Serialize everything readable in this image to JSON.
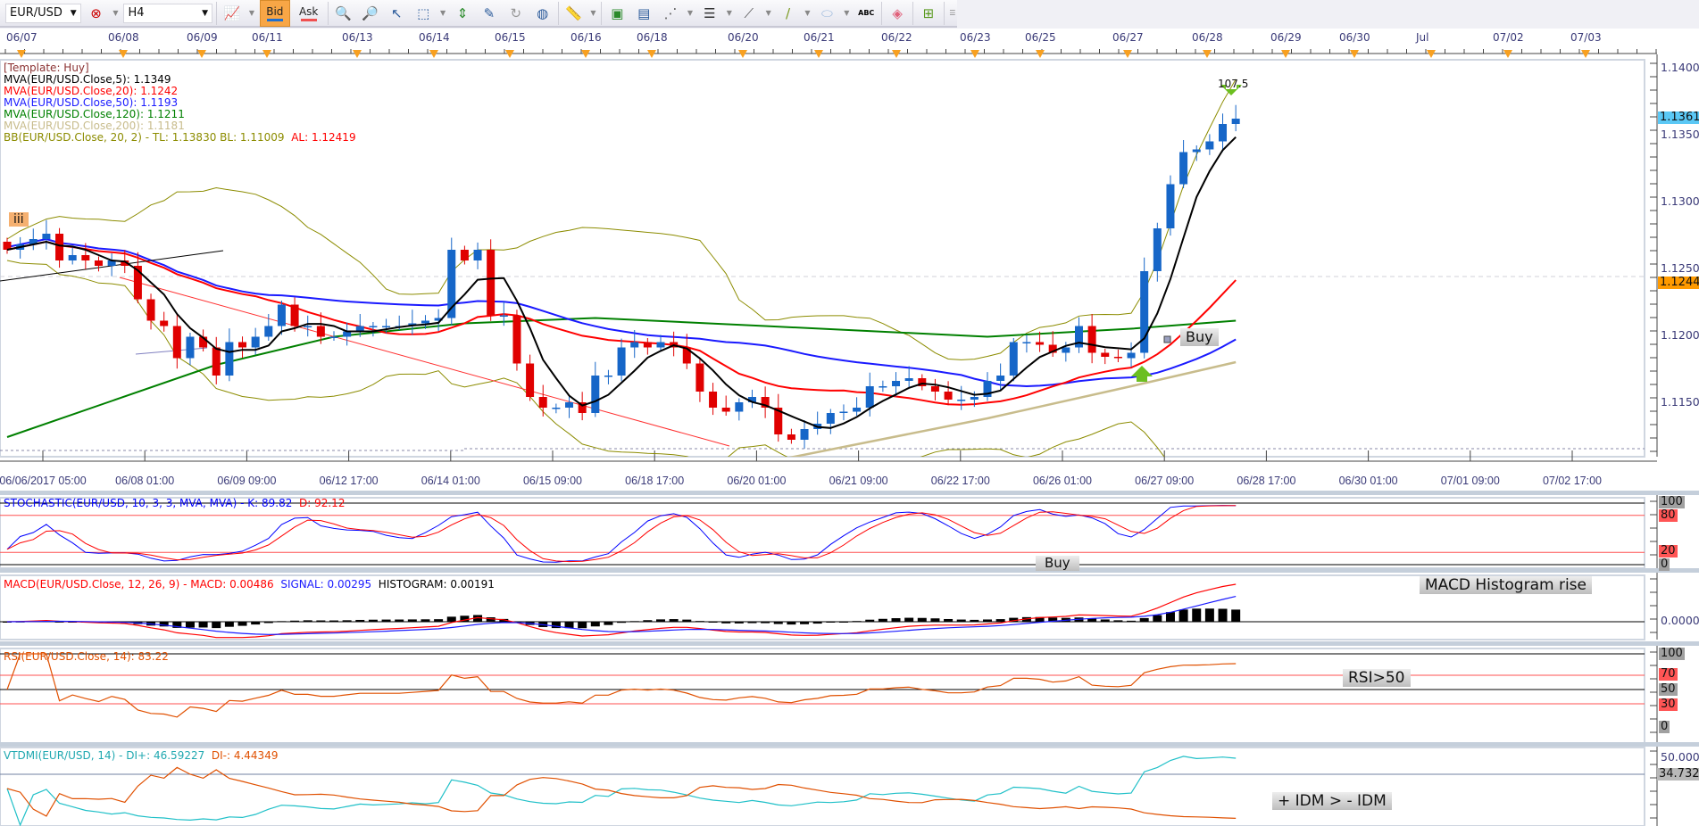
{
  "toolbar": {
    "symbol": "EUR/USD",
    "timeframe": "H4",
    "bid_label": "Bid",
    "ask_label": "Ask",
    "text_tool": "ABC",
    "icons": [
      "compare-icon",
      "line-chart-type-icon",
      "zoom-in-icon",
      "zoom-out-icon",
      "zoom-cursor-icon",
      "zoom-box-icon",
      "fit-height-icon",
      "edit-object-icon",
      "rotate-icon",
      "globe-icon",
      "ruler-icon",
      "image-icon",
      "template-icon",
      "fibonacci-icon",
      "lines-icon",
      "trend-tool-icon",
      "pen-icon",
      "ellipse-icon",
      "text-icon",
      "eraser-icon",
      "hierarchy-icon",
      "overflow-icon"
    ]
  },
  "top_dates": [
    "06/07",
    "06/08",
    "06/09",
    "06/11",
    "06/13",
    "06/14",
    "06/15",
    "06/16",
    "06/18",
    "06/20",
    "06/21",
    "06/22",
    "06/23",
    "06/25",
    "06/27",
    "06/28",
    "06/29",
    "06/30",
    "Jul",
    "07/02",
    "07/03"
  ],
  "bottom_times": [
    "06/06/2017 05:00",
    "06/08 01:00",
    "06/09 09:00",
    "06/12 17:00",
    "06/14 01:00",
    "06/15 09:00",
    "06/18 17:00",
    "06/20 01:00",
    "06/21 09:00",
    "06/22 17:00",
    "06/26 01:00",
    "06/27 09:00",
    "06/28 17:00",
    "06/30 01:00",
    "07/01 09:00",
    "07/02 17:00"
  ],
  "legend": {
    "template": "[Template: Huy]",
    "mva5": "MVA(EUR/USD.Close,5): 1.1349",
    "mva20": "MVA(EUR/USD.Close,20): 1.1242",
    "mva50": "MVA(EUR/USD.Close,50): 1.1193",
    "mva120": "MVA(EUR/USD.Close,120): 1.1211",
    "mva200": "MVA(EUR/USD.Close,200): 1.1181",
    "bb_prefix": "BB(EUR/USD.Close, 20, 2) -  TL: 1.13830  BL: 1.11009",
    "bb_al": "AL: 1.12419"
  },
  "price_axis": [
    "1.1400",
    "1.1350",
    "1.1300",
    "1.1250",
    "1.1200",
    "1.1150"
  ],
  "last_price": "1.13613",
  "line_price": "1.12440",
  "annotations": {
    "wave": "iii",
    "pips": "107.5",
    "buy_main": "Buy",
    "buy_stoch": "Buy",
    "macd_note": "MACD Histogram  rise",
    "rsi_note": "RSI>50",
    "dmi_note": "+ IDM > - IDM"
  },
  "stoch": {
    "title": "STOCHASTIC(EUR/USD, 10, 3, 3, MVA, MVA) -  K: 89.82",
    "d": "D: 92.12",
    "levels": [
      "100",
      "80",
      "20",
      "0"
    ]
  },
  "macd": {
    "title": "MACD(EUR/USD.Close, 12, 26, 9) -  MACD: 0.00486",
    "signal": "SIGNAL: 0.00295",
    "hist": "HISTOGRAM: 0.00191",
    "axis": "0.00000"
  },
  "rsi": {
    "title": "RSI(EUR/USD.Close, 14): 83.22",
    "levels": [
      "100",
      "70",
      "50",
      "30",
      "0"
    ]
  },
  "dmi": {
    "title": "VTDMI(EUR/USD, 14) -  DI+: 46.59227",
    "diminus": "DI-: 4.44349",
    "levels": [
      "50.0000",
      "34.7321"
    ]
  },
  "colors": {
    "up": "#1666c8",
    "down": "#e00000",
    "mva5": "#000000",
    "mva20": "#ff0000",
    "mva50": "#1a1aff",
    "mva120": "#008000",
    "mva200": "#c8bc8c",
    "bb": "#8c8c00",
    "stochK": "#0000ff",
    "stochD": "#ff0000",
    "rsi": "#e05000",
    "diplus": "#20c0c8",
    "diminus": "#e05000"
  },
  "chart_data": {
    "type": "candlestick",
    "symbol": "EUR/USD",
    "timeframe": "H4",
    "closes": [
      1.1264,
      1.1268,
      1.1272,
      1.1276,
      1.1256,
      1.126,
      1.1256,
      1.1252,
      1.1256,
      1.1252,
      1.1227,
      1.1211,
      1.1207,
      1.1183,
      1.1199,
      1.1191,
      1.117,
      1.1195,
      1.1191,
      1.1199,
      1.1207,
      1.1223,
      1.1207,
      1.1207,
      1.1199,
      1.1199,
      1.1203,
      1.1207,
      1.1207,
      1.1207,
      1.1207,
      1.1209,
      1.1211,
      1.1213,
      1.1264,
      1.1256,
      1.1264,
      1.1215,
      1.1215,
      1.1179,
      1.1154,
      1.1146,
      1.1146,
      1.115,
      1.1142,
      1.117,
      1.117,
      1.1191,
      1.1195,
      1.1191,
      1.1195,
      1.1191,
      1.1179,
      1.1158,
      1.1146,
      1.1143,
      1.115,
      1.1154,
      1.1146,
      1.1126,
      1.1122,
      1.113,
      1.1134,
      1.1142,
      1.1143,
      1.1146,
      1.1162,
      1.1162,
      1.1166,
      1.1168,
      1.1162,
      1.1158,
      1.1152,
      1.1152,
      1.1154,
      1.1166,
      1.117,
      1.1195,
      1.1195,
      1.1193,
      1.1187,
      1.1191,
      1.1207,
      1.1187,
      1.1184,
      1.1183,
      1.1187,
      1.1248,
      1.128,
      1.1313,
      1.1337,
      1.1339,
      1.1345,
      1.1358,
      1.1362
    ],
    "mva120_points": [
      [
        0,
        1.1124
      ],
      [
        16,
        1.1178
      ],
      [
        25,
        1.1199
      ],
      [
        35,
        1.1209
      ],
      [
        45,
        1.1213
      ],
      [
        58,
        1.1207
      ],
      [
        75,
        1.1199
      ],
      [
        86,
        1.1205
      ],
      [
        94,
        1.1211
      ]
    ],
    "mva200_points": [
      [
        32,
        1.1082
      ],
      [
        45,
        1.1092
      ],
      [
        58,
        1.1105
      ],
      [
        75,
        1.1138
      ],
      [
        86,
        1.1162
      ],
      [
        94,
        1.118
      ]
    ],
    "ylim": [
      1.1125,
      1.1405
    ]
  }
}
